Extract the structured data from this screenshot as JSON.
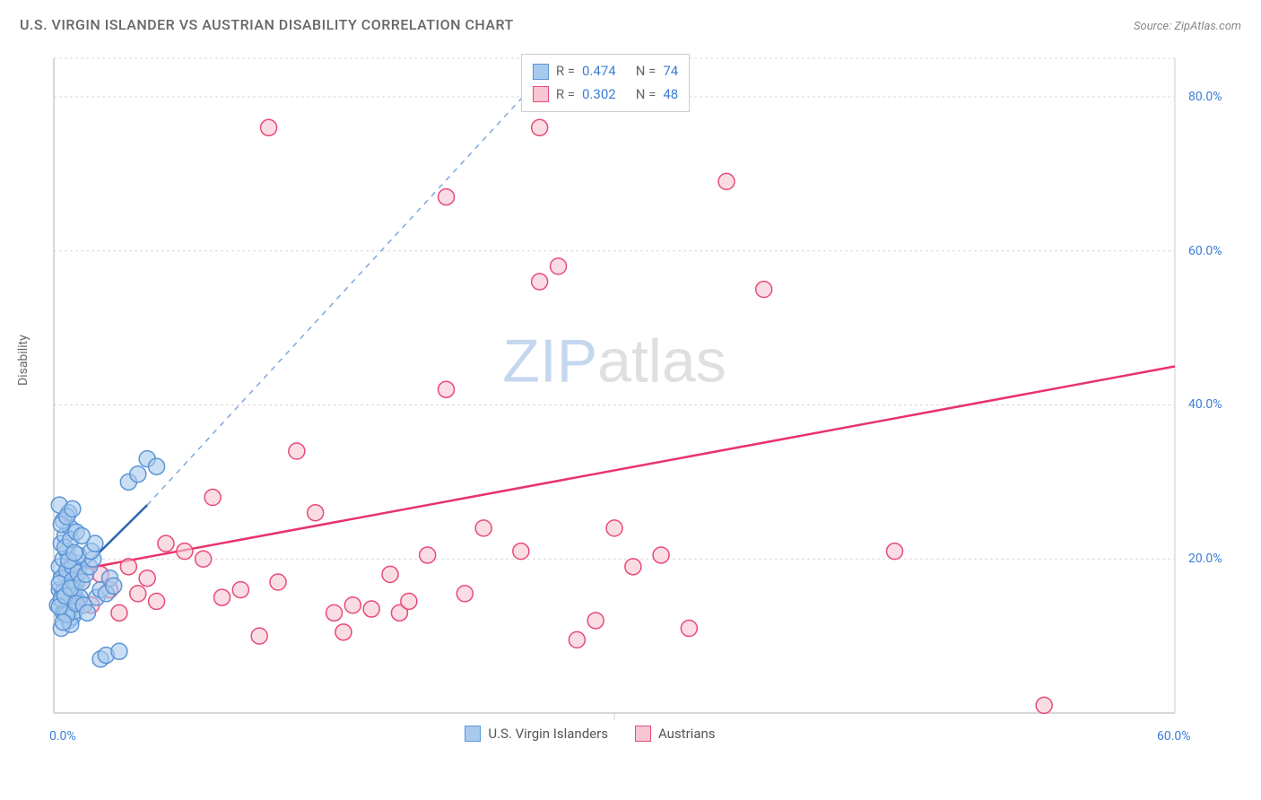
{
  "title": "U.S. VIRGIN ISLANDER VS AUSTRIAN DISABILITY CORRELATION CHART",
  "source": "Source: ZipAtlas.com",
  "y_axis_label": "Disability",
  "watermark": {
    "left": "ZIP",
    "right": "atlas"
  },
  "chart": {
    "type": "scatter",
    "xlim": [
      0,
      60
    ],
    "ylim": [
      0,
      85
    ],
    "x_ticks": [
      0,
      60
    ],
    "x_tick_labels": [
      "0.0%",
      "60.0%"
    ],
    "y_ticks": [
      20,
      40,
      60,
      80
    ],
    "y_tick_labels": [
      "20.0%",
      "40.0%",
      "60.0%",
      "80.0%"
    ],
    "grid_color": "#d8d8d8",
    "axis_color": "#cccccc",
    "background_color": "#ffffff",
    "marker_radius": 9,
    "marker_stroke_width": 1.5,
    "series": [
      {
        "name": "U.S. Virgin Islanders",
        "fill": "#a8caed",
        "stroke": "#5b95d6",
        "r_value": "0.474",
        "n_value": "74",
        "regression": {
          "x1": 0,
          "y1": 15,
          "x2": 5,
          "y2": 27,
          "solid_end_x": 5,
          "dash_end_x": 27,
          "dash_end_y": 85,
          "stroke": "#2d64b0",
          "width": 2.5
        },
        "points": [
          [
            0.2,
            14
          ],
          [
            0.3,
            16
          ],
          [
            0.5,
            13
          ],
          [
            0.7,
            15
          ],
          [
            0.8,
            12
          ],
          [
            1,
            14
          ],
          [
            1.2,
            17
          ],
          [
            0.4,
            11
          ],
          [
            0.6,
            18
          ],
          [
            0.9,
            13.5
          ],
          [
            1.1,
            15.5
          ],
          [
            0.3,
            19
          ],
          [
            0.5,
            20
          ],
          [
            0.8,
            16.5
          ],
          [
            1,
            12.5
          ],
          [
            1.3,
            14.5
          ],
          [
            0.7,
            21
          ],
          [
            0.4,
            22
          ],
          [
            0.6,
            23
          ],
          [
            0.9,
            24
          ],
          [
            1.2,
            19.5
          ],
          [
            0.5,
            25
          ],
          [
            0.8,
            26
          ],
          [
            1.1,
            16
          ],
          [
            0.3,
            27
          ],
          [
            0.6,
            13
          ],
          [
            0.9,
            11.5
          ],
          [
            1.4,
            15
          ],
          [
            0.4,
            17.5
          ],
          [
            0.7,
            18.5
          ],
          [
            1,
            19
          ],
          [
            1.3,
            20.5
          ],
          [
            0.5,
            15.7
          ],
          [
            0.8,
            14.3
          ],
          [
            1.1,
            13.2
          ],
          [
            0.3,
            16.8
          ],
          [
            0.6,
            21.5
          ],
          [
            0.9,
            22.5
          ],
          [
            1.2,
            23.5
          ],
          [
            0.4,
            14.8
          ],
          [
            0.7,
            12.8
          ],
          [
            1,
            17.2
          ],
          [
            1.3,
            18.2
          ],
          [
            0.5,
            11.8
          ],
          [
            0.8,
            19.8
          ],
          [
            1.1,
            20.8
          ],
          [
            0.3,
            13.8
          ],
          [
            0.6,
            15.2
          ],
          [
            0.9,
            16.2
          ],
          [
            1.2,
            14.2
          ],
          [
            0.4,
            24.5
          ],
          [
            0.7,
            25.5
          ],
          [
            1,
            26.5
          ],
          [
            1.5,
            17
          ],
          [
            1.7,
            18
          ],
          [
            1.9,
            19
          ],
          [
            2.1,
            20
          ],
          [
            2.3,
            15
          ],
          [
            2.5,
            16
          ],
          [
            1.6,
            14
          ],
          [
            1.8,
            13
          ],
          [
            2,
            21
          ],
          [
            2.2,
            22
          ],
          [
            1.5,
            23
          ],
          [
            2.8,
            15.5
          ],
          [
            3,
            17.5
          ],
          [
            3.2,
            16.5
          ],
          [
            2.5,
            7
          ],
          [
            2.8,
            7.5
          ],
          [
            3.5,
            8
          ],
          [
            4,
            30
          ],
          [
            4.5,
            31
          ],
          [
            5,
            33
          ],
          [
            5.5,
            32
          ]
        ]
      },
      {
        "name": "Austrians",
        "fill": "#f7c6d2",
        "stroke": "#e84a7a",
        "r_value": "0.302",
        "n_value": "48",
        "regression": {
          "x1": 0,
          "y1": 18,
          "x2": 60,
          "y2": 45,
          "stroke": "#e8336b",
          "width": 2.5
        },
        "points": [
          [
            1,
            15
          ],
          [
            1.5,
            17
          ],
          [
            2,
            14
          ],
          [
            2.5,
            18
          ],
          [
            3,
            16
          ],
          [
            3.5,
            13
          ],
          [
            4,
            19
          ],
          [
            4.5,
            15.5
          ],
          [
            5,
            17.5
          ],
          [
            5.5,
            14.5
          ],
          [
            6,
            22
          ],
          [
            7,
            21
          ],
          [
            8,
            20
          ],
          [
            8.5,
            28
          ],
          [
            9,
            15
          ],
          [
            10,
            16
          ],
          [
            11,
            10
          ],
          [
            12,
            17
          ],
          [
            13,
            34
          ],
          [
            14,
            26
          ],
          [
            15,
            13
          ],
          [
            15.5,
            10.5
          ],
          [
            16,
            14
          ],
          [
            17,
            13.5
          ],
          [
            18,
            18
          ],
          [
            18.5,
            13
          ],
          [
            19,
            14.5
          ],
          [
            20,
            20.5
          ],
          [
            21,
            42
          ],
          [
            22,
            15.5
          ],
          [
            23,
            24
          ],
          [
            25,
            21
          ],
          [
            26,
            56
          ],
          [
            27,
            58
          ],
          [
            28,
            9.5
          ],
          [
            29,
            12
          ],
          [
            30,
            24
          ],
          [
            31,
            19
          ],
          [
            32.5,
            20.5
          ],
          [
            34,
            11
          ],
          [
            36,
            69
          ],
          [
            38,
            55
          ],
          [
            45,
            21
          ],
          [
            53,
            1
          ],
          [
            26,
            76
          ],
          [
            11.5,
            76
          ],
          [
            21,
            67
          ],
          [
            1.2,
            14.8
          ]
        ]
      }
    ]
  },
  "legend": {
    "items": [
      {
        "label": "U.S. Virgin Islanders",
        "fill": "#a8caed",
        "stroke": "#5b95d6"
      },
      {
        "label": "Austrians",
        "fill": "#f7c6d2",
        "stroke": "#e84a7a"
      }
    ]
  }
}
